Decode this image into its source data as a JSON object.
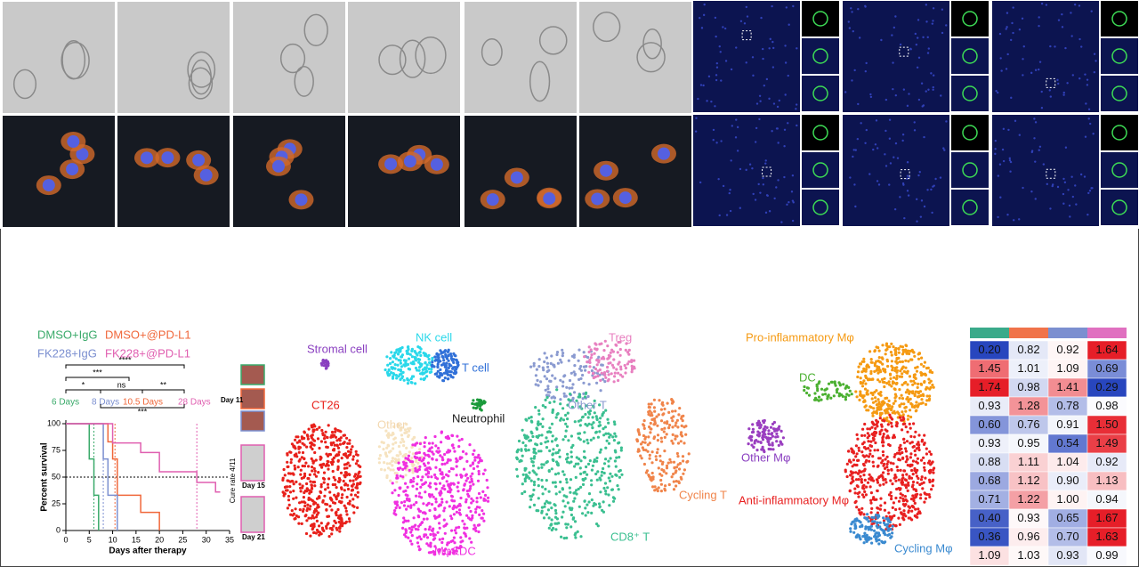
{
  "survival": {
    "series": [
      {
        "name": "DMSO+IgG",
        "color": "#3aaa6a",
        "median": 6,
        "median_label": "6 Days",
        "x": [
          0,
          5,
          6,
          7
        ],
        "values": [
          100,
          67,
          33,
          0
        ]
      },
      {
        "name": "DMSO+@PD-L1",
        "color": "#f0673a",
        "median": 10.5,
        "median_label": "10.5 Days",
        "x": [
          0,
          9,
          10,
          11,
          16,
          20
        ],
        "values": [
          100,
          83,
          67,
          33,
          17,
          0
        ]
      },
      {
        "name": "FK228+IgG",
        "color": "#7b8fd0",
        "median": 8,
        "median_label": "8 Days",
        "x": [
          0,
          8,
          9,
          11
        ],
        "values": [
          100,
          67,
          33,
          0
        ]
      },
      {
        "name": "FK228+@PD-L1",
        "color": "#e05fb0",
        "median": 28,
        "median_label": "28 Days",
        "x": [
          0,
          10,
          16,
          20,
          28,
          32,
          33
        ],
        "values": [
          100,
          82,
          73,
          55,
          45,
          36,
          36
        ]
      }
    ],
    "comparisons": [
      "****",
      "***",
      "*",
      "ns",
      "**",
      "***"
    ],
    "xlabel": "Days after therapy",
    "ylabel": "Percent survival",
    "xlim": [
      0,
      35
    ],
    "ylim": [
      0,
      100
    ],
    "xticks": [
      0,
      5,
      10,
      15,
      20,
      25,
      30,
      35
    ],
    "yticks": [
      0,
      25,
      50,
      75,
      100
    ],
    "photo_labels": [
      "Day 11",
      "Day 15",
      "Day 21"
    ],
    "cure_rate": "Cure rate 4/11"
  },
  "umaps": [
    {
      "labels": [
        "Stromal cell",
        "NK cell",
        "T cell",
        "CT26",
        "Other",
        "Neutrophil",
        "Mφ&DC"
      ]
    },
    {
      "labels": [
        "Treg",
        "Other T",
        "Cycling T",
        "CD8⁺ T"
      ]
    },
    {
      "labels": [
        "Pro-inflammatory Mφ",
        "DC",
        "Other Mφ",
        "Anti-inflammatory Mφ",
        "Cycling Mφ"
      ]
    }
  ],
  "heatmap": {
    "column_colors": [
      "#3aaa8a",
      "#f0734a",
      "#7b8fd0",
      "#e070c0"
    ],
    "rows": [
      [
        "0.20",
        "0.82",
        "0.92",
        "1.64"
      ],
      [
        "1.45",
        "1.01",
        "1.09",
        "0.69"
      ],
      [
        "1.74",
        "0.98",
        "1.41",
        "0.29"
      ],
      [
        "0.93",
        "1.28",
        "0.78",
        "0.98"
      ],
      [
        "0.60",
        "0.76",
        "0.91",
        "1.50"
      ],
      [
        "0.93",
        "0.95",
        "0.54",
        "1.49"
      ],
      [
        "0.88",
        "1.11",
        "1.04",
        "0.92"
      ],
      [
        "0.68",
        "1.12",
        "0.90",
        "1.13"
      ],
      [
        "0.71",
        "1.22",
        "1.00",
        "0.94"
      ],
      [
        "0.40",
        "0.93",
        "0.65",
        "1.67"
      ],
      [
        "0.36",
        "0.96",
        "0.70",
        "1.63"
      ],
      [
        "1.09",
        "1.03",
        "0.93",
        "0.99"
      ]
    ]
  }
}
